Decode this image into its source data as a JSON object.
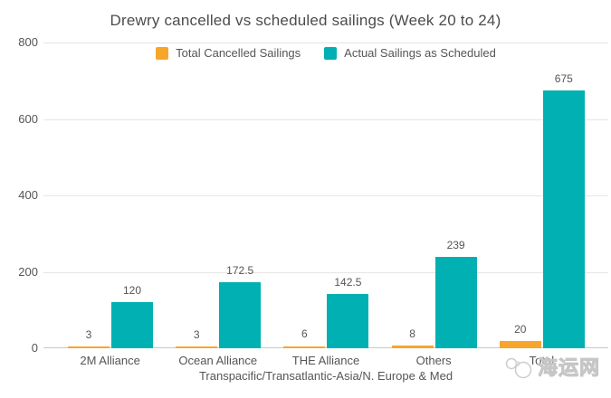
{
  "chart_data": {
    "type": "bar",
    "title": "Drewry cancelled vs scheduled sailings (Week 20 to 24)",
    "categories": [
      "2M Alliance",
      "Ocean Alliance",
      "THE Alliance",
      "Others",
      "Total"
    ],
    "series": [
      {
        "name": "Total Cancelled Sailings",
        "color": "#f7a62b",
        "values": [
          3,
          3,
          6,
          8,
          20
        ]
      },
      {
        "name": "Actual Sailings as Scheduled",
        "color": "#00b0b2",
        "values": [
          120,
          172.5,
          142.5,
          239,
          675
        ]
      }
    ],
    "xlabel": "Transpacific/Transatlantic-Asia/N. Europe & Med",
    "ylabel": "",
    "ylim": [
      0,
      800
    ],
    "yticks": [
      0,
      200,
      400,
      600,
      800
    ],
    "grid": true,
    "legend_position": "top",
    "value_labels_shown": true
  },
  "watermark": {
    "text": "海运网"
  }
}
